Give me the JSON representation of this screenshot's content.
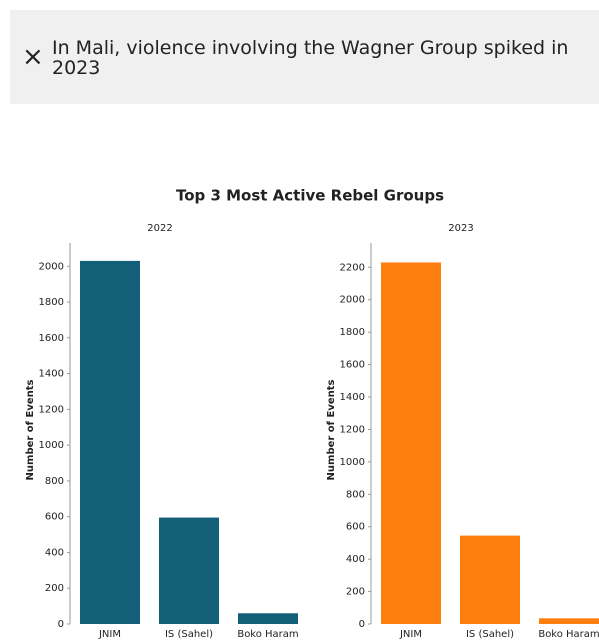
{
  "banner": {
    "icon": "×",
    "text": "In Mali, violence involving the Wagner Group spiked in 2023"
  },
  "title": "Top 3 Most Active Rebel Groups",
  "chart_data": [
    {
      "type": "bar",
      "title": "2022",
      "y_label": "Number of Events",
      "categories": [
        "JNIM",
        "IS (Sahel)",
        "Boko Haram"
      ],
      "values": [
        2030,
        595,
        60
      ],
      "color": "#135f77",
      "ylim": [
        0,
        2130
      ],
      "yticks": [
        0,
        200,
        400,
        600,
        800,
        1000,
        1200,
        1400,
        1600,
        1800,
        2000
      ]
    },
    {
      "type": "bar",
      "title": "2023",
      "y_label": "Number of Events",
      "categories": [
        "JNIM",
        "IS (Sahel)",
        "Boko Haram"
      ],
      "values": [
        2230,
        545,
        35
      ],
      "color": "#ff7f0e",
      "ylim": [
        0,
        2350
      ],
      "yticks": [
        0,
        200,
        400,
        600,
        800,
        1000,
        1200,
        1400,
        1600,
        1800,
        2000,
        2200
      ]
    }
  ]
}
